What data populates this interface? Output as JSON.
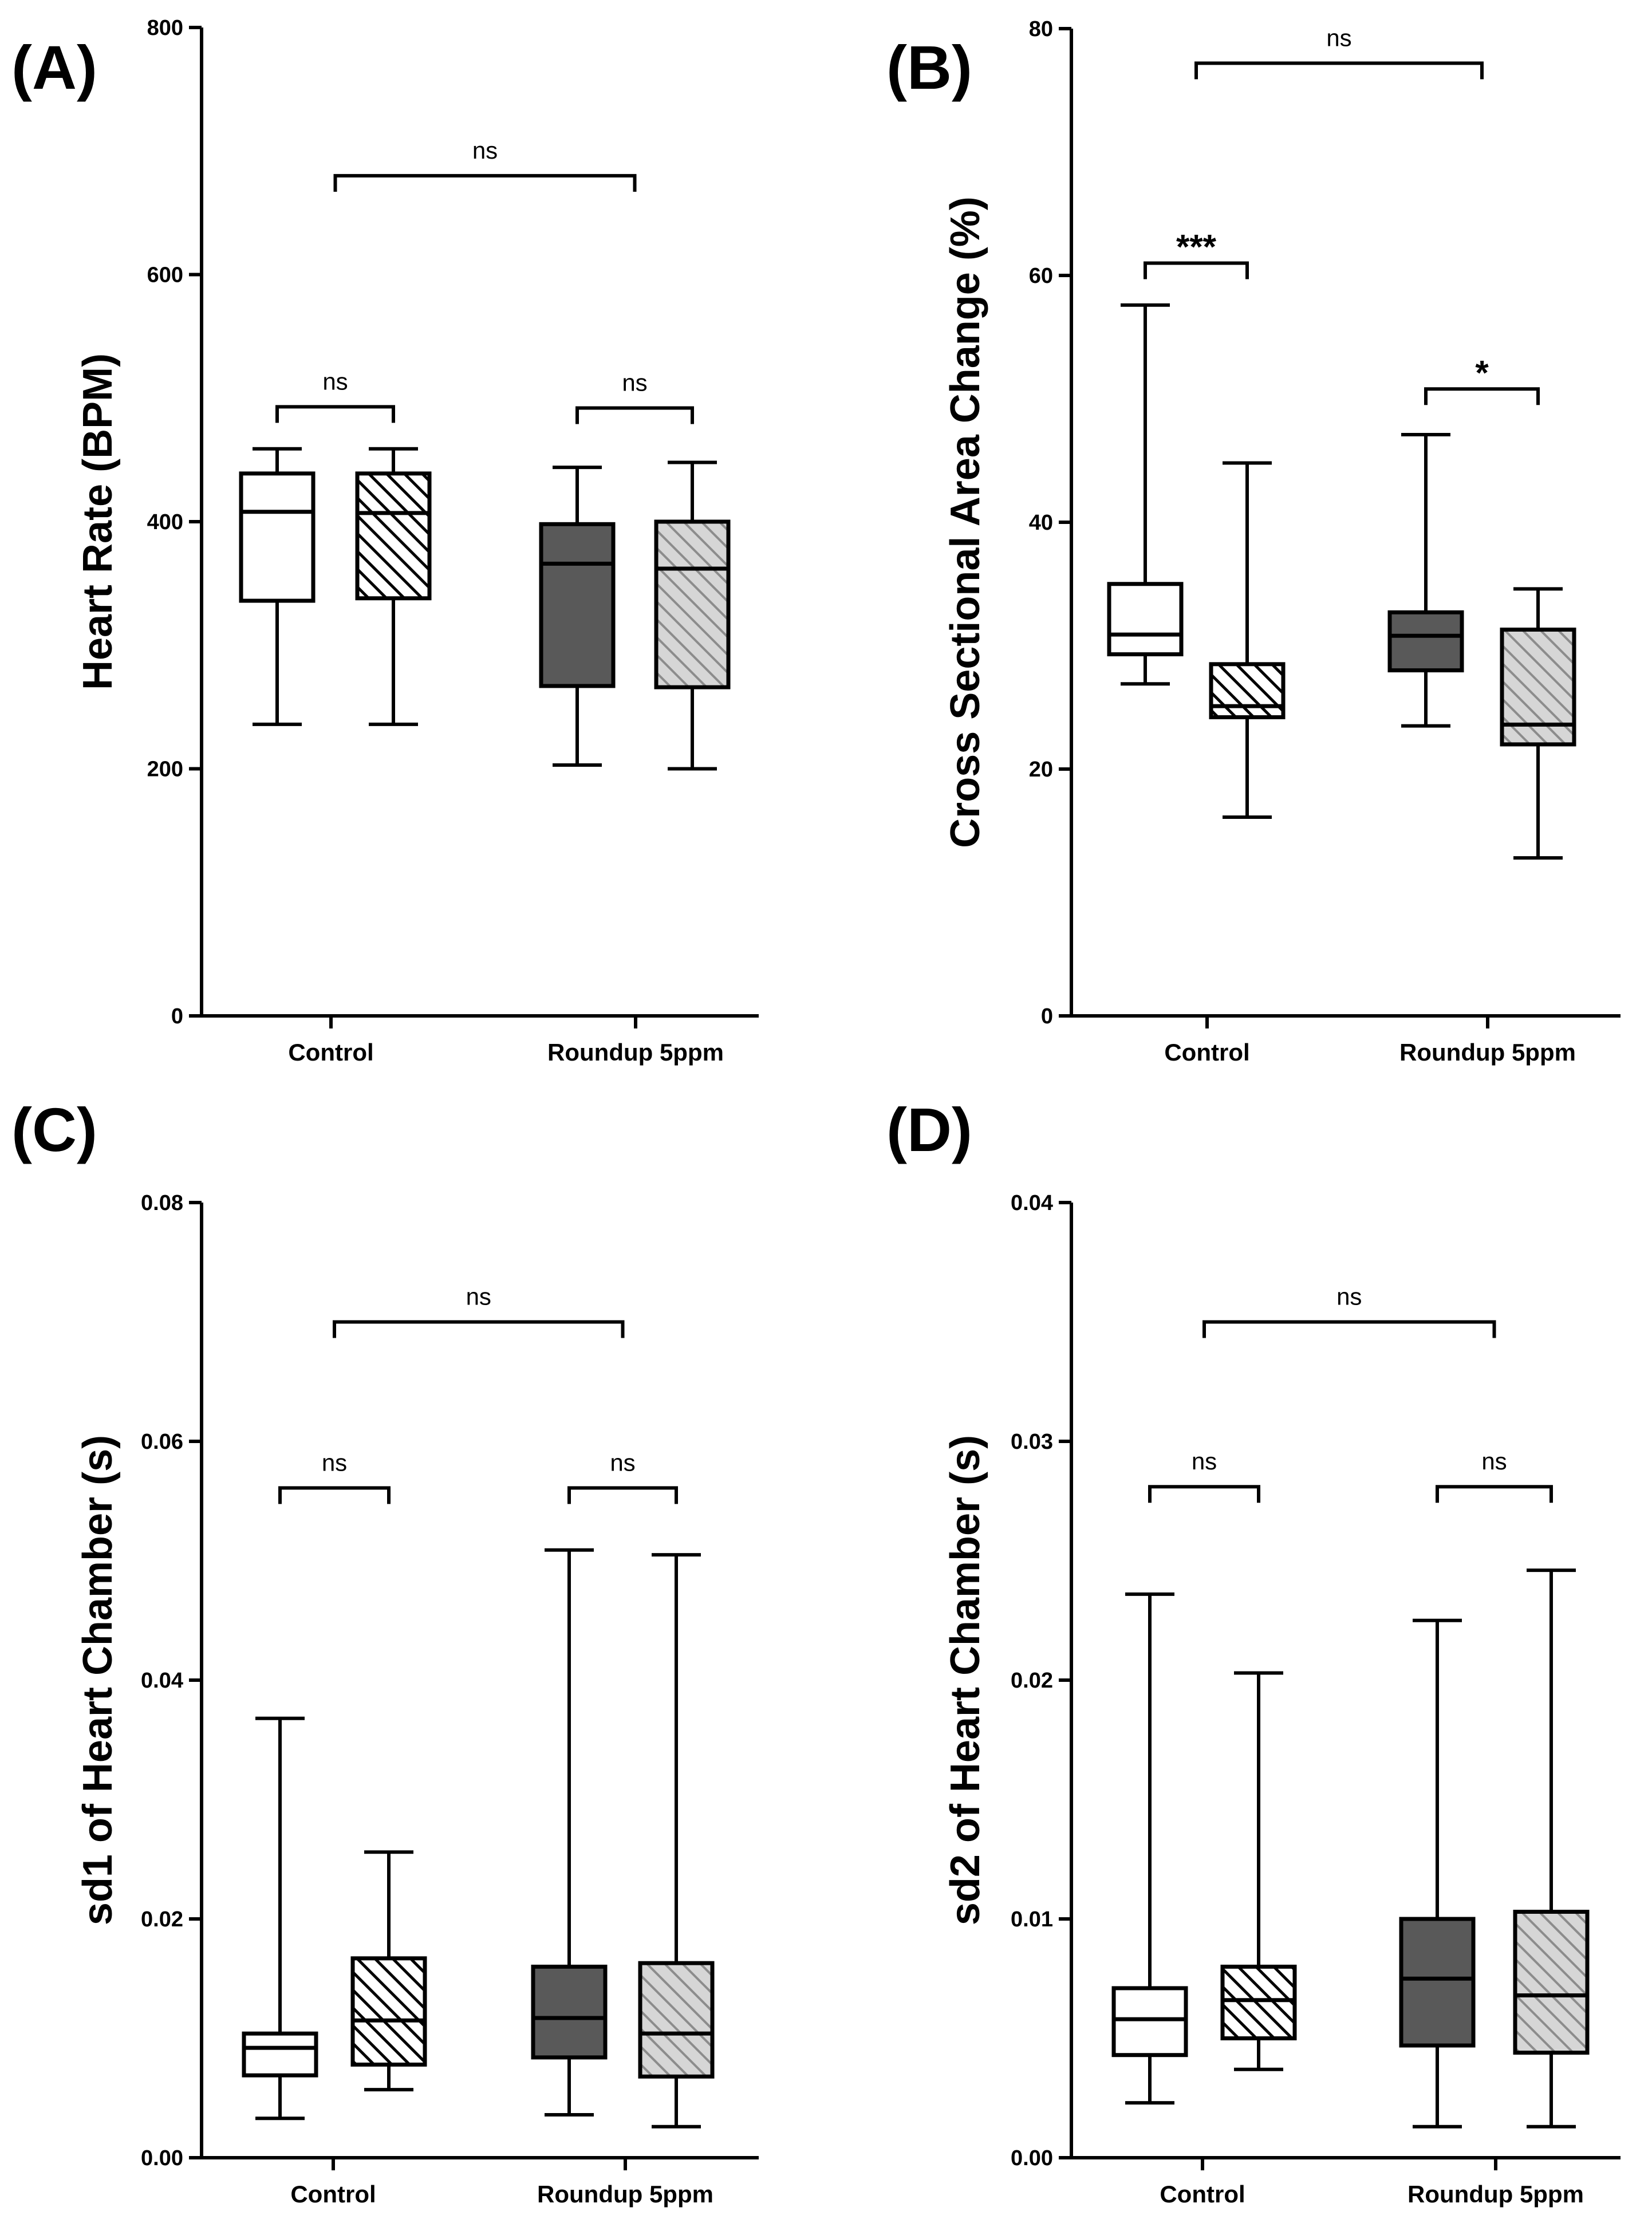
{
  "colors": {
    "ink": "#000000",
    "white_box": "#ffffff",
    "dark_box": "#595959",
    "light_box": "#bfbfbf"
  },
  "chart_data": [
    {
      "type": "box",
      "panel_label": "(A)",
      "ylabel": "Heart Rate (BPM)",
      "ylim": [
        0,
        800
      ],
      "yticks": [
        "0",
        "200",
        "400",
        "600",
        "800"
      ],
      "categories": [
        "Control",
        "Roundup 5ppm"
      ],
      "boxes": [
        {
          "group": "Control",
          "fill": "white",
          "hatched": false,
          "min": 236,
          "q1": 336,
          "median": 408,
          "q3": 439,
          "max": 459
        },
        {
          "group": "Control",
          "fill": "white",
          "hatched": true,
          "min": 236,
          "q1": 338,
          "median": 407,
          "q3": 439,
          "max": 459
        },
        {
          "group": "Roundup 5ppm",
          "fill": "dark",
          "hatched": false,
          "min": 203,
          "q1": 267,
          "median": 366,
          "q3": 398,
          "max": 444
        },
        {
          "group": "Roundup 5ppm",
          "fill": "light",
          "hatched": true,
          "min": 200,
          "q1": 266,
          "median": 362,
          "q3": 400,
          "max": 448
        }
      ],
      "brackets": [
        {
          "from": 0,
          "to": 1,
          "label": "ns",
          "y": 493
        },
        {
          "from": 2,
          "to": 3,
          "label": "ns",
          "y": 492
        },
        {
          "from": 0.5,
          "to": 2.5,
          "label": "ns",
          "y": 680
        }
      ]
    },
    {
      "type": "box",
      "panel_label": "(B)",
      "ylabel": "Cross Sectional Area  Change (%)",
      "ylim": [
        0,
        80
      ],
      "yticks": [
        "0",
        "20",
        "40",
        "60",
        "80"
      ],
      "categories": [
        "Control",
        "Roundup 5ppm"
      ],
      "boxes": [
        {
          "group": "Control",
          "fill": "white",
          "hatched": false,
          "min": 26.9,
          "q1": 29.3,
          "median": 30.9,
          "q3": 35.0,
          "max": 57.6
        },
        {
          "group": "Control",
          "fill": "white",
          "hatched": true,
          "min": 16.1,
          "q1": 24.2,
          "median": 25.1,
          "q3": 28.5,
          "max": 44.8
        },
        {
          "group": "Roundup 5ppm",
          "fill": "dark",
          "hatched": false,
          "min": 23.5,
          "q1": 28.0,
          "median": 30.8,
          "q3": 32.7,
          "max": 47.1
        },
        {
          "group": "Roundup 5ppm",
          "fill": "light",
          "hatched": true,
          "min": 12.8,
          "q1": 22.0,
          "median": 23.6,
          "q3": 31.3,
          "max": 34.6
        }
      ],
      "brackets": [
        {
          "from": 0,
          "to": 1,
          "label": "***",
          "y": 61.0
        },
        {
          "from": 2,
          "to": 3,
          "label": "*",
          "y": 50.8
        },
        {
          "from": 0.5,
          "to": 2.5,
          "label": "ns",
          "y": 77.2
        }
      ]
    },
    {
      "type": "box",
      "panel_label": "(C)",
      "ylabel": "sd1 of Heart Chamber (s)",
      "ylim": [
        0,
        0.08
      ],
      "yticks": [
        "0.00",
        "0.02",
        "0.04",
        "0.06",
        "0.08"
      ],
      "categories": [
        "Control",
        "Roundup 5ppm"
      ],
      "boxes": [
        {
          "group": "Control",
          "fill": "white",
          "hatched": false,
          "min": 0.0033,
          "q1": 0.0069,
          "median": 0.0092,
          "q3": 0.0104,
          "max": 0.0368
        },
        {
          "group": "Control",
          "fill": "white",
          "hatched": true,
          "min": 0.0057,
          "q1": 0.0078,
          "median": 0.0115,
          "q3": 0.0167,
          "max": 0.0256
        },
        {
          "group": "Roundup 5ppm",
          "fill": "dark",
          "hatched": false,
          "min": 0.0036,
          "q1": 0.0084,
          "median": 0.0117,
          "q3": 0.016,
          "max": 0.0509
        },
        {
          "group": "Roundup 5ppm",
          "fill": "light",
          "hatched": true,
          "min": 0.0026,
          "q1": 0.0068,
          "median": 0.0104,
          "q3": 0.0163,
          "max": 0.0505
        }
      ],
      "brackets": [
        {
          "from": 0,
          "to": 1,
          "label": "ns",
          "y": 0.0561
        },
        {
          "from": 2,
          "to": 3,
          "label": "ns",
          "y": 0.0561
        },
        {
          "from": 0.5,
          "to": 2.5,
          "label": "ns",
          "y": 0.07
        }
      ]
    },
    {
      "type": "box",
      "panel_label": "(D)",
      "ylabel": "sd2 of Heart Chamber (s)",
      "ylim": [
        0,
        0.04
      ],
      "yticks": [
        "0.00",
        "0.01",
        "0.02",
        "0.03",
        "0.04"
      ],
      "categories": [
        "Control",
        "Roundup 5ppm"
      ],
      "boxes": [
        {
          "group": "Control",
          "fill": "white",
          "hatched": false,
          "min": 0.0023,
          "q1": 0.0043,
          "median": 0.0058,
          "q3": 0.0071,
          "max": 0.0236
        },
        {
          "group": "Control",
          "fill": "white",
          "hatched": true,
          "min": 0.0037,
          "q1": 0.005,
          "median": 0.0066,
          "q3": 0.008,
          "max": 0.0203
        },
        {
          "group": "Roundup 5ppm",
          "fill": "dark",
          "hatched": false,
          "min": 0.0013,
          "q1": 0.0047,
          "median": 0.0075,
          "q3": 0.01,
          "max": 0.0225
        },
        {
          "group": "Roundup 5ppm",
          "fill": "light",
          "hatched": true,
          "min": 0.0013,
          "q1": 0.0044,
          "median": 0.0068,
          "q3": 0.0103,
          "max": 0.0246
        }
      ],
      "brackets": [
        {
          "from": 0,
          "to": 1,
          "label": "ns",
          "y": 0.0281
        },
        {
          "from": 2,
          "to": 3,
          "label": "ns",
          "y": 0.0281
        },
        {
          "from": 0.5,
          "to": 2.5,
          "label": "ns",
          "y": 0.035
        }
      ]
    }
  ]
}
